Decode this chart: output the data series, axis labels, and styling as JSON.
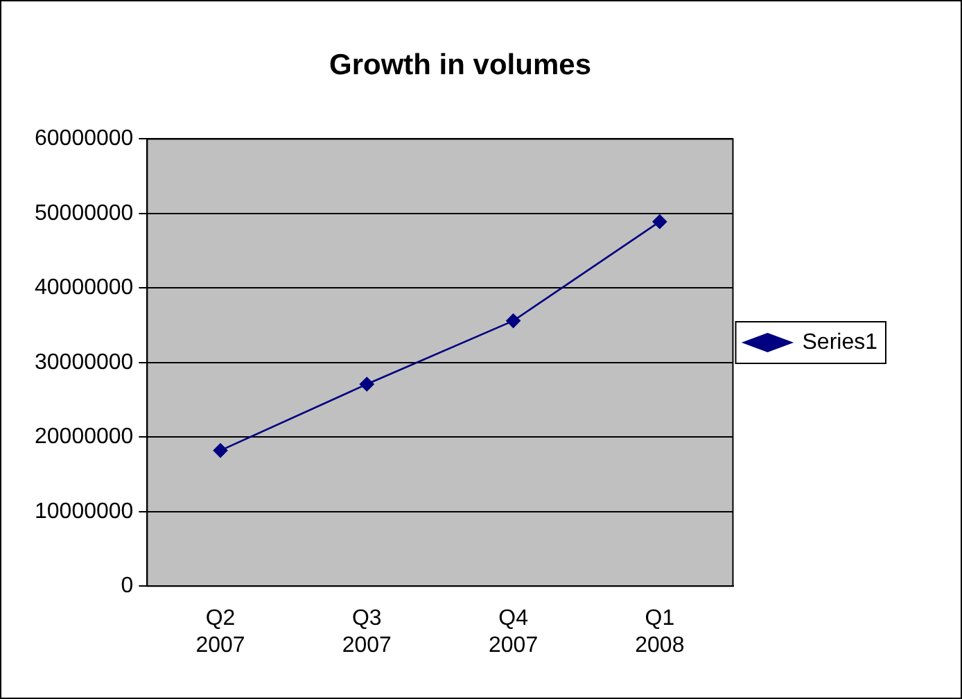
{
  "chart_data": {
    "type": "line",
    "title": "Growth in volumes",
    "categories": [
      "Q2 2007",
      "Q3 2007",
      "Q4 2007",
      "Q1 2008"
    ],
    "series": [
      {
        "name": "Series1",
        "color": "#000080",
        "values": [
          18200000,
          27100000,
          35600000,
          48900000
        ]
      }
    ],
    "ylim": [
      0,
      60000000
    ],
    "yticks": [
      0,
      10000000,
      20000000,
      30000000,
      40000000,
      50000000,
      60000000
    ],
    "grid": "y",
    "legend": "right",
    "marker": "diamond",
    "line_style": "solid"
  }
}
